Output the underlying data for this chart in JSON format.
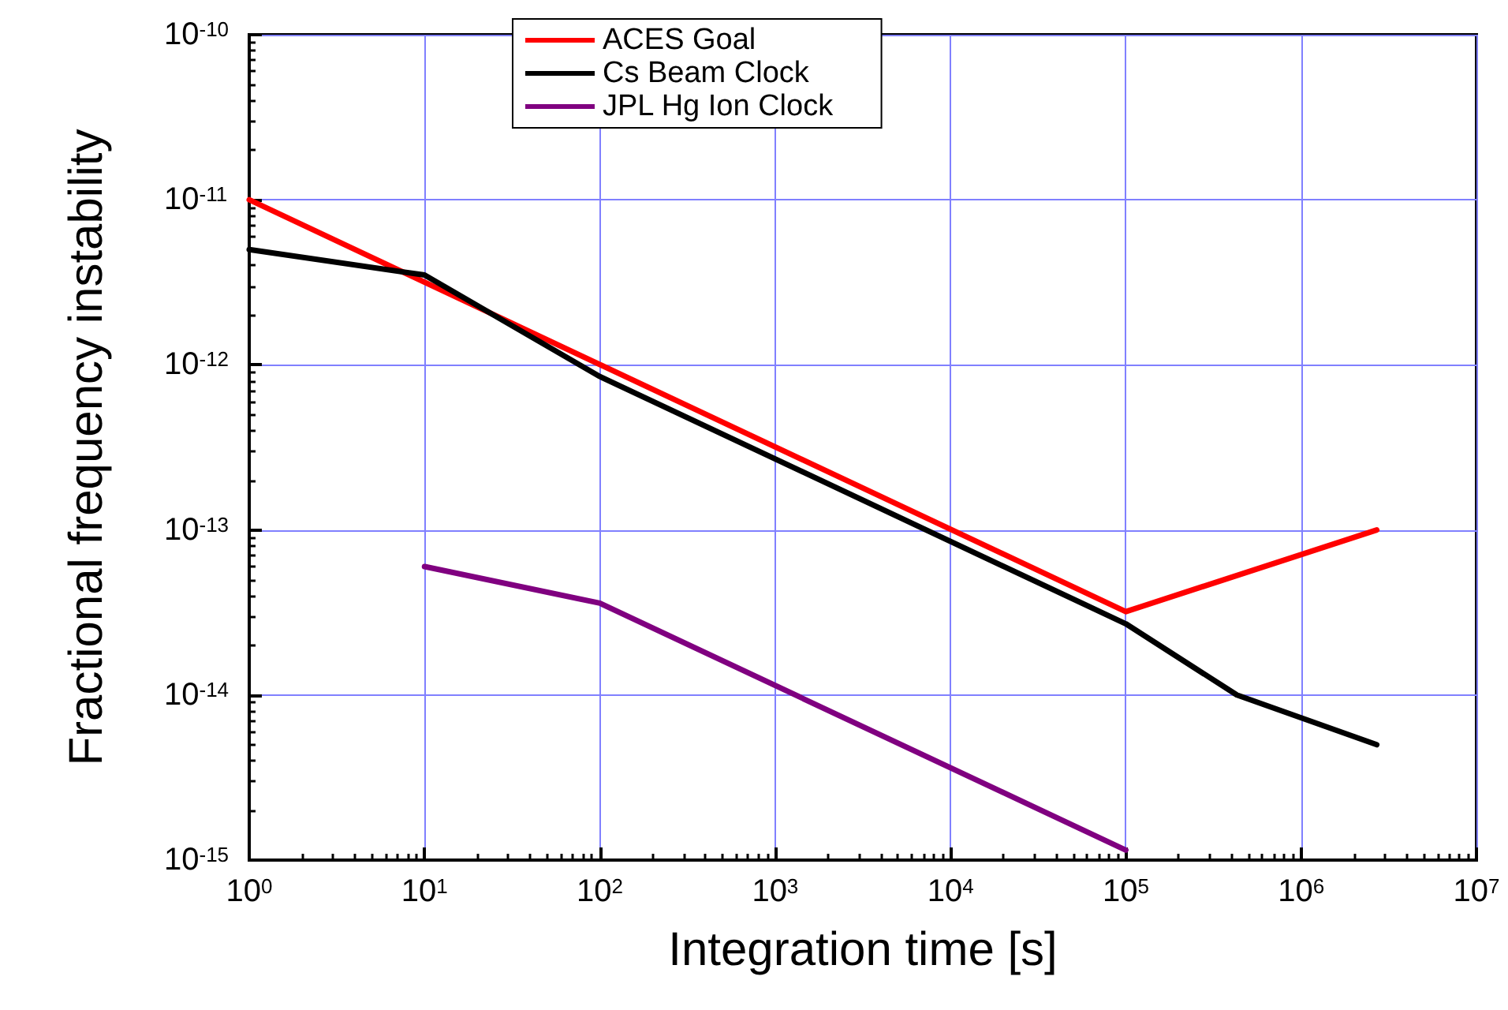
{
  "chart_data": {
    "type": "line",
    "xlabel": "Integration time [s]",
    "ylabel": "Fractional frequency instability",
    "log": "xy",
    "grid": true,
    "legend": "top",
    "line_style": "solid",
    "marker": "none",
    "xlim": [
      1,
      10000000
    ],
    "ylim": [
      1e-15,
      1e-10
    ],
    "xticks": [
      {
        "value": 1,
        "label": "10$^{0}$"
      },
      {
        "value": 10,
        "label": "10$^{1}$"
      },
      {
        "value": 100,
        "label": "10$^{2}$"
      },
      {
        "value": 1000,
        "label": "10$^{3}$"
      },
      {
        "value": 10000,
        "label": "10$^{4}$"
      },
      {
        "value": 100000,
        "label": "10$^{5}$"
      },
      {
        "value": 1000000,
        "label": "10$^{6}$"
      },
      {
        "value": 10000000,
        "label": "10$^{7}$"
      }
    ],
    "yticks": [
      {
        "value": 1e-15,
        "label": "10$^{-15}$"
      },
      {
        "value": 1e-14,
        "label": "10$^{-14}$"
      },
      {
        "value": 1e-13,
        "label": "10$^{-13}$"
      },
      {
        "value": 1e-12,
        "label": "10$^{-12}$"
      },
      {
        "value": 1e-11,
        "label": "10$^{-11}$"
      },
      {
        "value": 1e-10,
        "label": "10$^{-10}$"
      }
    ],
    "series": [
      {
        "name": "ACES Goal",
        "color": "#ff0000",
        "x": [
          1,
          100000,
          2700000
        ],
        "values": [
          1e-11,
          3.2e-14,
          1e-13
        ]
      },
      {
        "name": "Cs Beam Clock",
        "color": "#000000",
        "x": [
          1,
          10,
          100,
          100000,
          430000,
          2700000
        ],
        "values": [
          5e-12,
          3.5e-12,
          8.5e-13,
          2.7e-14,
          1e-14,
          5e-15
        ]
      },
      {
        "name": "JPL Hg Ion Clock",
        "color": "#800080",
        "x": [
          10,
          100,
          100000
        ],
        "values": [
          6e-14,
          3.6e-14,
          1.15e-15
        ]
      }
    ]
  }
}
